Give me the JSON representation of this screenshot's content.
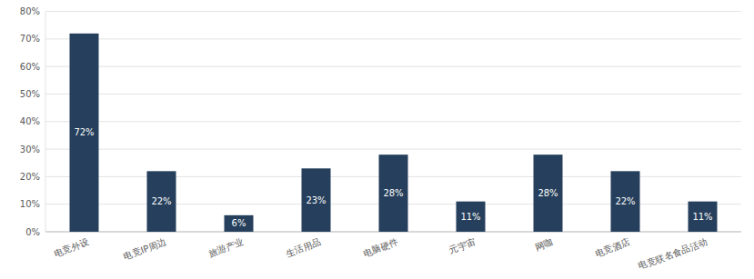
{
  "chart_data": {
    "type": "bar",
    "categories": [
      "电竞外设",
      "电竞IP周边",
      "旅游产业",
      "生活用品",
      "电脑硬件",
      "元宇宙",
      "网咖",
      "电竞酒店",
      "电竞联名食品活动"
    ],
    "values": [
      72,
      22,
      6,
      23,
      28,
      11,
      28,
      22,
      11
    ],
    "value_labels": [
      "72%",
      "22%",
      "6%",
      "23%",
      "28%",
      "11%",
      "28%",
      "22%",
      "11%"
    ],
    "color": "#253f5c",
    "ylim": [
      0,
      80
    ],
    "yticks": [
      {
        "value": 0,
        "label": "0%"
      },
      {
        "value": 10,
        "label": "10%"
      },
      {
        "value": 20,
        "label": "20%"
      },
      {
        "value": 30,
        "label": "30%"
      },
      {
        "value": 40,
        "label": "40%"
      },
      {
        "value": 50,
        "label": "50%"
      },
      {
        "value": 60,
        "label": "60%"
      },
      {
        "value": 70,
        "label": "70%"
      },
      {
        "value": 80,
        "label": "80%"
      }
    ],
    "grid": true,
    "data_labels": true
  }
}
